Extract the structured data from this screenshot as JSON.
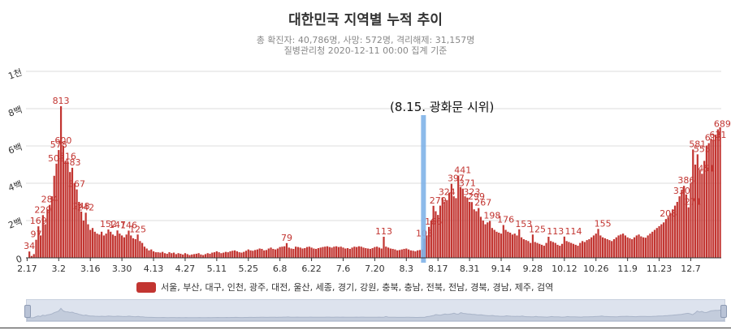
{
  "chart_data": {
    "type": "bar",
    "title": "대한민국 지역별 누적 추이",
    "subtitle_line1": "총 확진자: 40,786명, 사망: 572명, 격리해제: 31,157명",
    "subtitle_line2": "질병관리청 2020-12-11 00:00 집계 기준",
    "annotation": "(8.15. 광화문 시위)",
    "series_name": "서울, 부산, 대구, 인천, 광주, 대전, 울산, 세종, 경기, 강원, 충북, 충남, 전북, 전남, 경북, 경남, 제주, 검역",
    "color": "#c23531",
    "annotation_line_color": "#7fb2e8",
    "ylim": [
      0,
      1000
    ],
    "y_ticks": [
      {
        "value": 0,
        "label": "0"
      },
      {
        "value": 200,
        "label": "2백"
      },
      {
        "value": 400,
        "label": "4백"
      },
      {
        "value": 600,
        "label": "6백"
      },
      {
        "value": 800,
        "label": "8백"
      },
      {
        "value": 1000,
        "label": "1천"
      }
    ],
    "x_tick_labels": [
      "2.17",
      "3.2",
      "3.16",
      "3.30",
      "4.13",
      "4.27",
      "5.11",
      "5.25",
      "6.8",
      "6.22",
      "7.6",
      "7.20",
      "8.3",
      "8.17",
      "8.31",
      "9.14",
      "9.28",
      "10.12",
      "10.26",
      "11.9",
      "11.23",
      "12.7"
    ],
    "data_labels": [
      {
        "day": 15,
        "value": 813,
        "label": "813"
      },
      {
        "day": 14,
        "value": 578,
        "label": "578"
      },
      {
        "day": 13,
        "value": 505,
        "label": "505"
      },
      {
        "day": 16,
        "value": 600,
        "label": "600"
      },
      {
        "day": 18,
        "value": 516,
        "label": "516"
      },
      {
        "day": 20,
        "value": 483,
        "label": "483"
      },
      {
        "day": 22,
        "value": 367,
        "label": "367"
      },
      {
        "day": 24,
        "value": 248,
        "label": "248"
      },
      {
        "day": 26,
        "value": 242,
        "label": "242"
      },
      {
        "day": 10,
        "value": 284,
        "label": "284"
      },
      {
        "day": 7,
        "value": 229,
        "label": "229"
      },
      {
        "day": 5,
        "value": 169,
        "label": "169"
      },
      {
        "day": 4,
        "value": 97,
        "label": "97"
      },
      {
        "day": 1,
        "value": 34,
        "label": "34"
      },
      {
        "day": 36,
        "value": 152,
        "label": "152"
      },
      {
        "day": 40,
        "value": 147,
        "label": "147"
      },
      {
        "day": 45,
        "value": 146,
        "label": "146"
      },
      {
        "day": 49,
        "value": 125,
        "label": "125"
      },
      {
        "day": 115,
        "value": 79,
        "label": "79"
      },
      {
        "day": 158,
        "value": 113,
        "label": "113"
      },
      {
        "day": 176,
        "value": 103,
        "label": "103"
      },
      {
        "day": 180,
        "value": 166,
        "label": "166"
      },
      {
        "day": 182,
        "value": 279,
        "label": "279"
      },
      {
        "day": 186,
        "value": 324,
        "label": "324"
      },
      {
        "day": 190,
        "value": 397,
        "label": "397"
      },
      {
        "day": 193,
        "value": 441,
        "label": "441"
      },
      {
        "day": 195,
        "value": 371,
        "label": "371"
      },
      {
        "day": 197,
        "value": 323,
        "label": "323"
      },
      {
        "day": 199,
        "value": 299,
        "label": "299"
      },
      {
        "day": 202,
        "value": 267,
        "label": "267"
      },
      {
        "day": 206,
        "value": 198,
        "label": "198"
      },
      {
        "day": 212,
        "value": 176,
        "label": "176"
      },
      {
        "day": 220,
        "value": 153,
        "label": "153"
      },
      {
        "day": 226,
        "value": 125,
        "label": "125"
      },
      {
        "day": 234,
        "value": 113,
        "label": "113"
      },
      {
        "day": 242,
        "value": 114,
        "label": "114"
      },
      {
        "day": 255,
        "value": 155,
        "label": "155"
      },
      {
        "day": 284,
        "value": 208,
        "label": "208"
      },
      {
        "day": 290,
        "value": 330,
        "label": "330"
      },
      {
        "day": 292,
        "value": 386,
        "label": "386"
      },
      {
        "day": 295,
        "value": 271,
        "label": "271"
      },
      {
        "day": 297,
        "value": 581,
        "label": "581"
      },
      {
        "day": 299,
        "value": 555,
        "label": "555"
      },
      {
        "day": 301,
        "value": 451,
        "label": "451"
      },
      {
        "day": 304,
        "value": 615,
        "label": "615"
      },
      {
        "day": 306,
        "value": 631,
        "label": "631"
      },
      {
        "day": 308,
        "value": 689,
        "label": "689"
      }
    ],
    "values": [
      1,
      34,
      10,
      20,
      97,
      169,
      120,
      229,
      180,
      260,
      284,
      330,
      440,
      505,
      578,
      813,
      600,
      520,
      516,
      460,
      483,
      400,
      367,
      300,
      248,
      200,
      242,
      180,
      150,
      160,
      140,
      130,
      125,
      140,
      120,
      130,
      152,
      140,
      125,
      118,
      147,
      130,
      120,
      110,
      125,
      146,
      120,
      105,
      100,
      125,
      90,
      80,
      60,
      50,
      40,
      45,
      35,
      30,
      30,
      28,
      32,
      25,
      22,
      30,
      25,
      28,
      20,
      25,
      22,
      18,
      25,
      20,
      15,
      18,
      20,
      22,
      25,
      18,
      15,
      20,
      25,
      22,
      28,
      30,
      35,
      30,
      25,
      28,
      32,
      30,
      35,
      38,
      40,
      35,
      30,
      28,
      32,
      38,
      45,
      40,
      38,
      42,
      45,
      50,
      48,
      40,
      42,
      50,
      55,
      48,
      45,
      50,
      58,
      60,
      62,
      79,
      55,
      50,
      48,
      60,
      58,
      55,
      50,
      52,
      58,
      60,
      55,
      50,
      48,
      52,
      55,
      58,
      60,
      62,
      58,
      55,
      60,
      62,
      58,
      60,
      55,
      50,
      52,
      48,
      55,
      60,
      58,
      62,
      60,
      55,
      52,
      50,
      48,
      52,
      58,
      60,
      55,
      50,
      113,
      60,
      55,
      50,
      48,
      45,
      40,
      42,
      45,
      48,
      50,
      45,
      40,
      38,
      35,
      40,
      42,
      45,
      103,
      120,
      166,
      200,
      279,
      250,
      230,
      280,
      324,
      300,
      310,
      350,
      397,
      330,
      320,
      441,
      380,
      371,
      330,
      323,
      300,
      299,
      260,
      250,
      267,
      220,
      200,
      180,
      190,
      198,
      160,
      150,
      140,
      135,
      130,
      176,
      150,
      140,
      135,
      125,
      130,
      120,
      153,
      110,
      100,
      95,
      90,
      80,
      125,
      85,
      80,
      75,
      70,
      65,
      80,
      113,
      90,
      85,
      80,
      70,
      65,
      75,
      114,
      90,
      85,
      80,
      75,
      70,
      65,
      80,
      90,
      85,
      95,
      100,
      110,
      120,
      130,
      155,
      120,
      110,
      105,
      100,
      95,
      90,
      100,
      110,
      120,
      125,
      130,
      120,
      110,
      105,
      100,
      110,
      120,
      125,
      115,
      110,
      108,
      120,
      130,
      140,
      150,
      160,
      170,
      180,
      190,
      208,
      220,
      240,
      260,
      280,
      300,
      330,
      360,
      386,
      340,
      271,
      400,
      581,
      500,
      555,
      470,
      451,
      520,
      600,
      615,
      640,
      631,
      660,
      689,
      700
    ]
  }
}
